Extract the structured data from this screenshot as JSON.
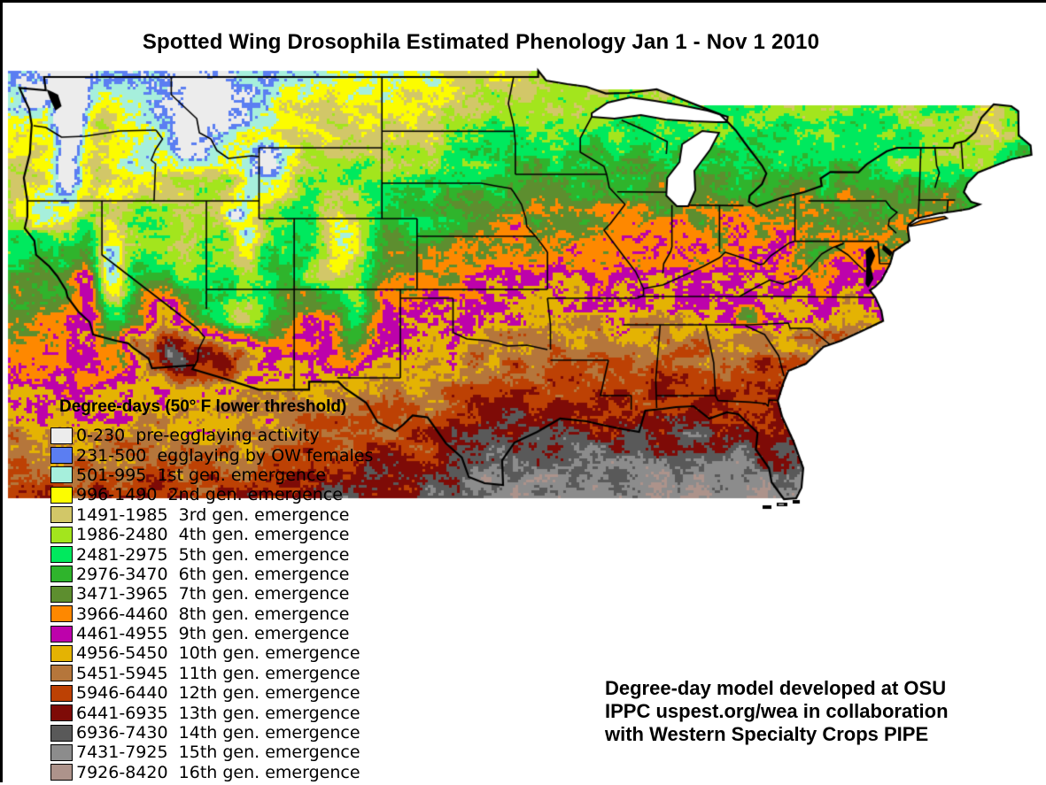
{
  "title": "Spotted Wing Drosophila Estimated Phenology Jan 1 - Nov 1 2010",
  "legend": {
    "title": "Degree-days (50° F lower threshold)",
    "items": [
      {
        "range": "0-230",
        "label": "pre-egglaying activity",
        "color": "#ececec"
      },
      {
        "range": "231-500",
        "label": "egglaying by OW females",
        "color": "#5b7ef2"
      },
      {
        "range": "501-995",
        "label": "1st gen. emergence",
        "color": "#a6efdc"
      },
      {
        "range": "996-1490",
        "label": "2nd gen. emergence",
        "color": "#fcfc00"
      },
      {
        "range": "1491-1985",
        "label": "3rd gen. emergence",
        "color": "#d2c768"
      },
      {
        "range": "1986-2480",
        "label": "4th gen. emergence",
        "color": "#a3e51d"
      },
      {
        "range": "2481-2975",
        "label": "5th gen. emergence",
        "color": "#00e95e"
      },
      {
        "range": "2976-3470",
        "label": "6th gen. emergence",
        "color": "#2fb42c"
      },
      {
        "range": "3471-3965",
        "label": "7th gen. emergence",
        "color": "#5d8e2f"
      },
      {
        "range": "3966-4460",
        "label": "8th gen. emergence",
        "color": "#fe8800"
      },
      {
        "range": "4461-4955",
        "label": "9th gen. emergence",
        "color": "#bd02ab"
      },
      {
        "range": "4956-5450",
        "label": "10th gen. emergence",
        "color": "#e4b303"
      },
      {
        "range": "5451-5945",
        "label": "11th gen. emergence",
        "color": "#b5763b"
      },
      {
        "range": "5946-6440",
        "label": "12th gen. emergence",
        "color": "#bd4104"
      },
      {
        "range": "6441-6935",
        "label": "13th gen. emergence",
        "color": "#7e0b07"
      },
      {
        "range": "6936-7430",
        "label": "14th gen. emergence",
        "color": "#595959"
      },
      {
        "range": "7431-7925",
        "label": "15th gen. emergence",
        "color": "#8c8c8c"
      },
      {
        "range": "7926-8420",
        "label": "16th gen. emergence",
        "color": "#ad938b"
      }
    ]
  },
  "credit": {
    "lines": [
      "Degree-day model developed at OSU",
      "IPPC uspest.org/wea in collaboration",
      "with Western Specialty Crops PIPE"
    ]
  },
  "map": {
    "region": "Contiguous United States",
    "coast_color": "#000000",
    "lake_color": "#ffffff",
    "state_line_color": "#000000"
  }
}
